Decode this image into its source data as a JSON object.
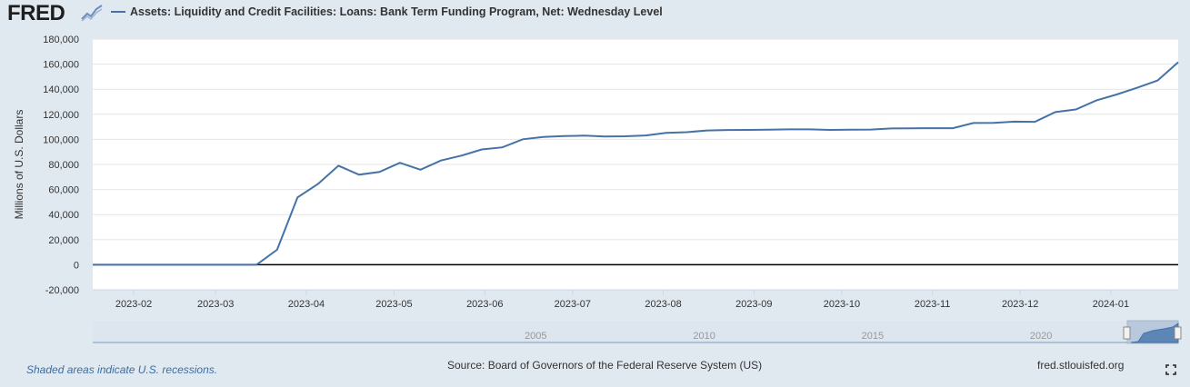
{
  "brand": {
    "logo_text": "FRED"
  },
  "chart_data": {
    "type": "line",
    "title": "Assets: Liquidity and Credit Facilities: Loans: Bank Term Funding Program, Net: Wednesday Level",
    "ylabel": "Millions of U.S. Dollars",
    "xlabel": "",
    "ylim": [
      -20000,
      180000
    ],
    "yticks": [
      -20000,
      0,
      20000,
      40000,
      60000,
      80000,
      100000,
      120000,
      140000,
      160000,
      180000
    ],
    "ytick_labels": [
      "-20,000",
      "0",
      "20,000",
      "40,000",
      "60,000",
      "80,000",
      "100,000",
      "120,000",
      "140,000",
      "160,000",
      "180,000"
    ],
    "xlim": [
      "2023-01-18",
      "2024-01-24"
    ],
    "xticks": [
      "2023-02-01",
      "2023-03-01",
      "2023-04-01",
      "2023-05-01",
      "2023-06-01",
      "2023-07-01",
      "2023-08-01",
      "2023-09-01",
      "2023-10-01",
      "2023-11-01",
      "2023-12-01",
      "2024-01-01"
    ],
    "xtick_labels": [
      "2023-02",
      "2023-03",
      "2023-04",
      "2023-05",
      "2023-06",
      "2023-07",
      "2023-08",
      "2023-09",
      "2023-10",
      "2023-11",
      "2023-12",
      "2024-01"
    ],
    "grid": true,
    "zero_line": true,
    "series": [
      {
        "name": "Assets: Liquidity and Credit Facilities: Loans: Bank Term Funding Program, Net: Wednesday Level",
        "color": "#4572a7",
        "x": [
          "2023-01-18",
          "2023-01-25",
          "2023-02-01",
          "2023-02-08",
          "2023-02-15",
          "2023-02-22",
          "2023-03-01",
          "2023-03-08",
          "2023-03-15",
          "2023-03-22",
          "2023-03-29",
          "2023-04-05",
          "2023-04-12",
          "2023-04-19",
          "2023-04-26",
          "2023-05-03",
          "2023-05-10",
          "2023-05-17",
          "2023-05-24",
          "2023-05-31",
          "2023-06-07",
          "2023-06-14",
          "2023-06-21",
          "2023-06-28",
          "2023-07-05",
          "2023-07-12",
          "2023-07-19",
          "2023-07-26",
          "2023-08-02",
          "2023-08-09",
          "2023-08-16",
          "2023-08-23",
          "2023-08-30",
          "2023-09-06",
          "2023-09-13",
          "2023-09-20",
          "2023-09-27",
          "2023-10-04",
          "2023-10-11",
          "2023-10-18",
          "2023-10-25",
          "2023-11-01",
          "2023-11-08",
          "2023-11-15",
          "2023-11-22",
          "2023-11-29",
          "2023-12-06",
          "2023-12-13",
          "2023-12-20",
          "2023-12-27",
          "2024-01-03",
          "2024-01-10",
          "2024-01-17",
          "2024-01-24"
        ],
        "y": [
          0,
          0,
          0,
          0,
          0,
          0,
          0,
          0,
          0,
          11943,
          53669,
          64403,
          79020,
          71837,
          73998,
          81323,
          75762,
          83133,
          87007,
          91979,
          93593,
          100104,
          101899,
          102620,
          102937,
          102224,
          102453,
          103099,
          105109,
          105719,
          107086,
          107480,
          107562,
          107724,
          107988,
          107963,
          107546,
          107788,
          107848,
          108690,
          108792,
          108906,
          108911,
          113023,
          113176,
          114096,
          113963,
          121764,
          123839,
          131003,
          135830,
          141186,
          147049,
          161513
        ]
      }
    ]
  },
  "navigator": {
    "year_labels": [
      "2005",
      "2010",
      "2015",
      "2020"
    ],
    "year_values": [
      2005,
      2010,
      2015,
      2020
    ],
    "range": [
      1991.85,
      2024.07
    ]
  },
  "footer": {
    "recession_note": "Shaded areas indicate U.S. recessions.",
    "source": "Source: Board of Governors of the Federal Reserve System (US)",
    "site": "fred.stlouisfed.org"
  },
  "icons": {
    "expand": "expand-icon",
    "logo_mark": "chart-line-icon"
  }
}
